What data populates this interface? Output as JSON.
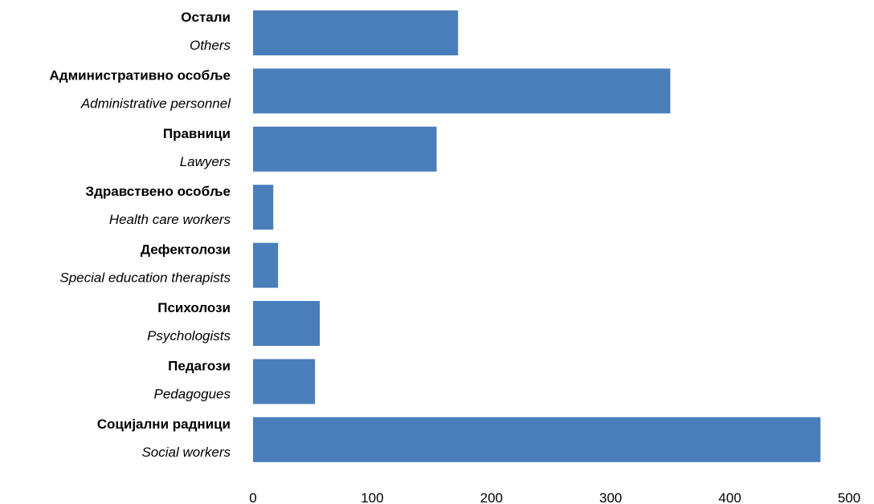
{
  "chart_data": {
    "type": "bar",
    "orientation": "horizontal",
    "categories": [
      {
        "label": "Остали",
        "label_en": "Others",
        "value": 172
      },
      {
        "label": "Административно особље",
        "label_en": "Administrative personnel",
        "value": 350
      },
      {
        "label": "Правници",
        "label_en": "Lawyers",
        "value": 154
      },
      {
        "label": "Здравствено особље",
        "label_en": "Health care workers",
        "value": 17
      },
      {
        "label": "Дефектолози",
        "label_en": "Special education therapists",
        "value": 21
      },
      {
        "label": "Психолози",
        "label_en": "Psychologists",
        "value": 56
      },
      {
        "label": "Педагози",
        "label_en": "Pedagogues",
        "value": 52
      },
      {
        "label": "Социјални радници",
        "label_en": "Social workers",
        "value": 476
      }
    ],
    "xlim": [
      0,
      500
    ],
    "x_ticks": [
      0,
      100,
      200,
      300,
      400,
      500
    ],
    "bar_color": "#4a7ebb",
    "grid": false,
    "legend": "none"
  }
}
